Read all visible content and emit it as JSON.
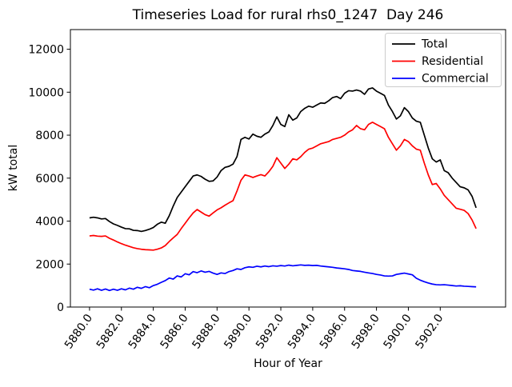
{
  "figure": {
    "title": "Timeseries Load for rural rhs0_1247  Day 246"
  },
  "chart_data": {
    "type": "line",
    "title": "Timeseries Load for rural rhs0_1247  Day 246",
    "xlabel": "Hour of Year",
    "ylabel": "kW total",
    "grid": false,
    "legend_position": "upper right",
    "line_width": 1.7,
    "xlim": [
      5878.8,
      5906.1
    ],
    "ylim": [
      0,
      12914
    ],
    "xticks": [
      5880,
      5882,
      5884,
      5886,
      5888,
      5890,
      5892,
      5894,
      5896,
      5898,
      5900,
      5902
    ],
    "xtick_labels": [
      "5880.0",
      "5882.0",
      "5884.0",
      "5886.0",
      "5888.0",
      "5890.0",
      "5892.0",
      "5894.0",
      "5896.0",
      "5898.0",
      "5900.0",
      "5902.0"
    ],
    "xtick_rotation": -55,
    "yticks": [
      0,
      2000,
      4000,
      6000,
      8000,
      10000,
      12000
    ],
    "ytick_labels": [
      "0",
      "2000",
      "4000",
      "6000",
      "8000",
      "10000",
      "12000"
    ],
    "x": [
      5880.0,
      5880.25,
      5880.5,
      5880.75,
      5881.0,
      5881.25,
      5881.5,
      5881.75,
      5882.0,
      5882.25,
      5882.5,
      5882.75,
      5883.0,
      5883.25,
      5883.5,
      5883.75,
      5884.0,
      5884.25,
      5884.5,
      5884.75,
      5885.0,
      5885.25,
      5885.5,
      5885.75,
      5886.0,
      5886.25,
      5886.5,
      5886.75,
      5887.0,
      5887.25,
      5887.5,
      5887.75,
      5888.0,
      5888.25,
      5888.5,
      5888.75,
      5889.0,
      5889.25,
      5889.5,
      5889.75,
      5890.0,
      5890.25,
      5890.5,
      5890.75,
      5891.0,
      5891.25,
      5891.5,
      5891.75,
      5892.0,
      5892.25,
      5892.5,
      5892.75,
      5893.0,
      5893.25,
      5893.5,
      5893.75,
      5894.0,
      5894.25,
      5894.5,
      5894.75,
      5895.0,
      5895.25,
      5895.5,
      5895.75,
      5896.0,
      5896.25,
      5896.5,
      5896.75,
      5897.0,
      5897.25,
      5897.5,
      5897.75,
      5898.0,
      5898.25,
      5898.5,
      5898.75,
      5899.0,
      5899.25,
      5899.5,
      5899.75,
      5900.0,
      5900.25,
      5900.5,
      5900.75,
      5901.0,
      5901.25,
      5901.5,
      5901.75,
      5902.0,
      5902.25,
      5902.5,
      5902.75,
      5903.0,
      5903.25,
      5903.5,
      5903.75,
      5904.0,
      5904.25
    ],
    "series": [
      {
        "name": "Total",
        "color": "#000000",
        "values": [
          4150,
          4180,
          4150,
          4100,
          4120,
          3980,
          3870,
          3800,
          3720,
          3650,
          3640,
          3570,
          3560,
          3520,
          3560,
          3620,
          3700,
          3850,
          3950,
          3900,
          4250,
          4700,
          5100,
          5350,
          5600,
          5850,
          6100,
          6150,
          6080,
          5950,
          5850,
          5870,
          6050,
          6350,
          6500,
          6550,
          6650,
          7000,
          7800,
          7900,
          7820,
          8050,
          7950,
          7900,
          8050,
          8150,
          8450,
          8850,
          8500,
          8400,
          8950,
          8700,
          8800,
          9100,
          9250,
          9350,
          9300,
          9400,
          9500,
          9480,
          9600,
          9750,
          9800,
          9700,
          9950,
          10070,
          10050,
          10100,
          10050,
          9900,
          10150,
          10200,
          10050,
          9950,
          9850,
          9400,
          9100,
          8750,
          8900,
          9280,
          9100,
          8800,
          8650,
          8600,
          8000,
          7400,
          6900,
          6750,
          6850,
          6350,
          6250,
          6000,
          5800,
          5600,
          5550,
          5450,
          5150,
          4620
        ]
      },
      {
        "name": "Residential",
        "color": "#ff0000",
        "values": [
          3310,
          3330,
          3300,
          3290,
          3310,
          3200,
          3120,
          3030,
          2950,
          2880,
          2820,
          2760,
          2720,
          2690,
          2670,
          2660,
          2650,
          2690,
          2750,
          2860,
          3050,
          3220,
          3380,
          3650,
          3900,
          4150,
          4380,
          4540,
          4420,
          4300,
          4230,
          4380,
          4520,
          4620,
          4740,
          4850,
          4950,
          5400,
          5900,
          6150,
          6100,
          6030,
          6100,
          6160,
          6100,
          6300,
          6550,
          6950,
          6700,
          6450,
          6650,
          6900,
          6850,
          7000,
          7200,
          7350,
          7400,
          7500,
          7600,
          7650,
          7700,
          7800,
          7850,
          7900,
          8000,
          8150,
          8250,
          8450,
          8300,
          8250,
          8500,
          8600,
          8500,
          8400,
          8300,
          7900,
          7600,
          7300,
          7500,
          7800,
          7700,
          7500,
          7350,
          7300,
          6700,
          6150,
          5700,
          5750,
          5500,
          5200,
          5000,
          4800,
          4600,
          4550,
          4500,
          4350,
          4050,
          3650
        ]
      },
      {
        "name": "Commercial",
        "color": "#0000ff",
        "values": [
          830,
          790,
          850,
          780,
          840,
          770,
          830,
          780,
          850,
          800,
          880,
          830,
          920,
          870,
          950,
          900,
          1000,
          1060,
          1150,
          1230,
          1350,
          1300,
          1450,
          1400,
          1550,
          1500,
          1650,
          1600,
          1680,
          1620,
          1660,
          1580,
          1520,
          1590,
          1560,
          1650,
          1700,
          1780,
          1750,
          1830,
          1870,
          1850,
          1900,
          1870,
          1910,
          1880,
          1920,
          1900,
          1930,
          1910,
          1950,
          1920,
          1940,
          1960,
          1940,
          1950,
          1930,
          1940,
          1910,
          1890,
          1870,
          1850,
          1820,
          1800,
          1780,
          1750,
          1700,
          1680,
          1660,
          1620,
          1590,
          1560,
          1520,
          1490,
          1450,
          1440,
          1450,
          1520,
          1550,
          1580,
          1540,
          1500,
          1340,
          1250,
          1180,
          1120,
          1070,
          1040,
          1030,
          1040,
          1020,
          1000,
          980,
          990,
          970,
          960,
          950,
          940
        ]
      }
    ],
    "legend_colors": {
      "border": "#cccccc",
      "background": "#ffffff"
    }
  }
}
